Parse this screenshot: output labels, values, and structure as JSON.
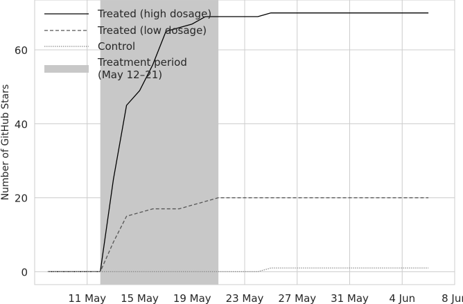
{
  "chart_data": {
    "type": "line",
    "ylabel": "Number of GitHub Stars",
    "xlabel": "",
    "x_axis_type": "date",
    "xlim": [
      "2024-05-07",
      "2024-06-08"
    ],
    "ylim": [
      -3.5,
      73.5
    ],
    "grid": true,
    "legend_position": "top-left",
    "x_ticks": [
      {
        "date": "2024-05-11",
        "label": "11 May"
      },
      {
        "date": "2024-05-15",
        "label": "15 May"
      },
      {
        "date": "2024-05-19",
        "label": "19 May"
      },
      {
        "date": "2024-05-23",
        "label": "23 May"
      },
      {
        "date": "2024-05-27",
        "label": "27 May"
      },
      {
        "date": "2024-05-31",
        "label": "31 May"
      },
      {
        "date": "2024-06-04",
        "label": "4 Jun"
      },
      {
        "date": "2024-06-08",
        "label": "8 Jun"
      }
    ],
    "y_ticks": [
      0,
      20,
      40,
      60
    ],
    "shaded_region": {
      "start": "2024-05-12",
      "end": "2024-05-21",
      "label": "Treatment period\n(May 12–21)",
      "color": "#c8c8c8"
    },
    "series": [
      {
        "name": "Treated (high dosage)",
        "color": "#000000",
        "style": "solid",
        "points": [
          [
            "2024-05-08",
            0
          ],
          [
            "2024-05-09",
            0
          ],
          [
            "2024-05-10",
            0
          ],
          [
            "2024-05-11",
            0
          ],
          [
            "2024-05-12",
            0
          ],
          [
            "2024-05-13",
            25
          ],
          [
            "2024-05-14",
            45
          ],
          [
            "2024-05-15",
            49
          ],
          [
            "2024-05-16",
            56
          ],
          [
            "2024-05-17",
            65
          ],
          [
            "2024-05-18",
            66
          ],
          [
            "2024-05-19",
            67
          ],
          [
            "2024-05-20",
            69
          ],
          [
            "2024-05-21",
            69
          ],
          [
            "2024-05-22",
            69
          ],
          [
            "2024-05-23",
            69
          ],
          [
            "2024-05-24",
            69
          ],
          [
            "2024-05-25",
            70
          ],
          [
            "2024-05-26",
            70
          ],
          [
            "2024-05-27",
            70
          ],
          [
            "2024-05-28",
            70
          ],
          [
            "2024-05-29",
            70
          ],
          [
            "2024-05-30",
            70
          ],
          [
            "2024-05-31",
            70
          ],
          [
            "2024-06-01",
            70
          ],
          [
            "2024-06-02",
            70
          ],
          [
            "2024-06-03",
            70
          ],
          [
            "2024-06-04",
            70
          ],
          [
            "2024-06-05",
            70
          ],
          [
            "2024-06-06",
            70
          ]
        ]
      },
      {
        "name": "Treated (low dosage)",
        "color": "#555555",
        "style": "dashed",
        "points": [
          [
            "2024-05-08",
            0
          ],
          [
            "2024-05-09",
            0
          ],
          [
            "2024-05-10",
            0
          ],
          [
            "2024-05-11",
            0
          ],
          [
            "2024-05-12",
            0
          ],
          [
            "2024-05-13",
            8
          ],
          [
            "2024-05-14",
            15
          ],
          [
            "2024-05-15",
            16
          ],
          [
            "2024-05-16",
            17
          ],
          [
            "2024-05-17",
            17
          ],
          [
            "2024-05-18",
            17
          ],
          [
            "2024-05-19",
            18
          ],
          [
            "2024-05-20",
            19
          ],
          [
            "2024-05-21",
            20
          ],
          [
            "2024-05-22",
            20
          ],
          [
            "2024-05-23",
            20
          ],
          [
            "2024-05-24",
            20
          ],
          [
            "2024-05-25",
            20
          ],
          [
            "2024-05-26",
            20
          ],
          [
            "2024-05-27",
            20
          ],
          [
            "2024-05-28",
            20
          ],
          [
            "2024-05-29",
            20
          ],
          [
            "2024-05-30",
            20
          ],
          [
            "2024-05-31",
            20
          ],
          [
            "2024-06-01",
            20
          ],
          [
            "2024-06-02",
            20
          ],
          [
            "2024-06-03",
            20
          ],
          [
            "2024-06-04",
            20
          ],
          [
            "2024-06-05",
            20
          ],
          [
            "2024-06-06",
            20
          ]
        ]
      },
      {
        "name": "Control",
        "color": "#8c8c8c",
        "style": "dotted",
        "points": [
          [
            "2024-05-08",
            0
          ],
          [
            "2024-05-09",
            0
          ],
          [
            "2024-05-10",
            0
          ],
          [
            "2024-05-11",
            0
          ],
          [
            "2024-05-12",
            0
          ],
          [
            "2024-05-13",
            0
          ],
          [
            "2024-05-14",
            0
          ],
          [
            "2024-05-15",
            0
          ],
          [
            "2024-05-16",
            0
          ],
          [
            "2024-05-17",
            0
          ],
          [
            "2024-05-18",
            0
          ],
          [
            "2024-05-19",
            0
          ],
          [
            "2024-05-20",
            0
          ],
          [
            "2024-05-21",
            0
          ],
          [
            "2024-05-22",
            0
          ],
          [
            "2024-05-23",
            0
          ],
          [
            "2024-05-24",
            0
          ],
          [
            "2024-05-25",
            1
          ],
          [
            "2024-05-26",
            1
          ],
          [
            "2024-05-27",
            1
          ],
          [
            "2024-05-28",
            1
          ],
          [
            "2024-05-29",
            1
          ],
          [
            "2024-05-30",
            1
          ],
          [
            "2024-05-31",
            1
          ],
          [
            "2024-06-01",
            1
          ],
          [
            "2024-06-02",
            1
          ],
          [
            "2024-06-03",
            1
          ],
          [
            "2024-06-04",
            1
          ],
          [
            "2024-06-05",
            1
          ],
          [
            "2024-06-06",
            1
          ]
        ]
      }
    ]
  }
}
